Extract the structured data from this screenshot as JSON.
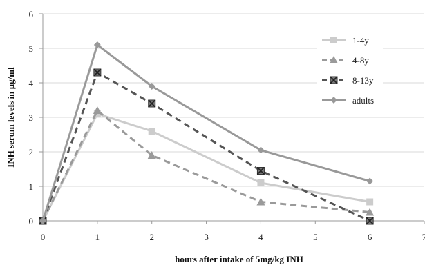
{
  "chart_data": {
    "type": "line",
    "title": "",
    "xlabel": "hours after intake of 5mg/kg INH",
    "ylabel": "INH serum levels in µg/ml",
    "xlim": [
      0,
      7
    ],
    "ylim": [
      0,
      6
    ],
    "x_ticks": [
      "0",
      "1",
      "2",
      "3",
      "4",
      "5",
      "6",
      "7"
    ],
    "y_ticks": [
      "0",
      "1",
      "2",
      "3",
      "4",
      "5",
      "6"
    ],
    "grid": "horizontal",
    "legend_position": "right",
    "series": [
      {
        "name": "1-4y",
        "x": [
          0,
          1,
          2,
          4,
          6
        ],
        "values": [
          0,
          3.1,
          2.6,
          1.1,
          0.55
        ],
        "color": "#cccccc",
        "dash": "solid",
        "marker": "square"
      },
      {
        "name": "4-8y",
        "x": [
          0,
          1,
          2,
          4,
          6
        ],
        "values": [
          0,
          3.2,
          1.9,
          0.55,
          0.25
        ],
        "color": "#9a9a9a",
        "dash": "dashed",
        "marker": "triangle"
      },
      {
        "name": "8-13y",
        "x": [
          0,
          1,
          2,
          4,
          6
        ],
        "values": [
          0,
          4.3,
          3.4,
          1.45,
          0.0
        ],
        "color": "#555555",
        "dash": "dashed",
        "marker": "x-square"
      },
      {
        "name": "adults",
        "x": [
          0,
          1,
          2,
          4,
          6
        ],
        "values": [
          0,
          5.1,
          3.9,
          2.05,
          1.15
        ],
        "color": "#999999",
        "dash": "solid",
        "marker": "diamond"
      }
    ]
  }
}
